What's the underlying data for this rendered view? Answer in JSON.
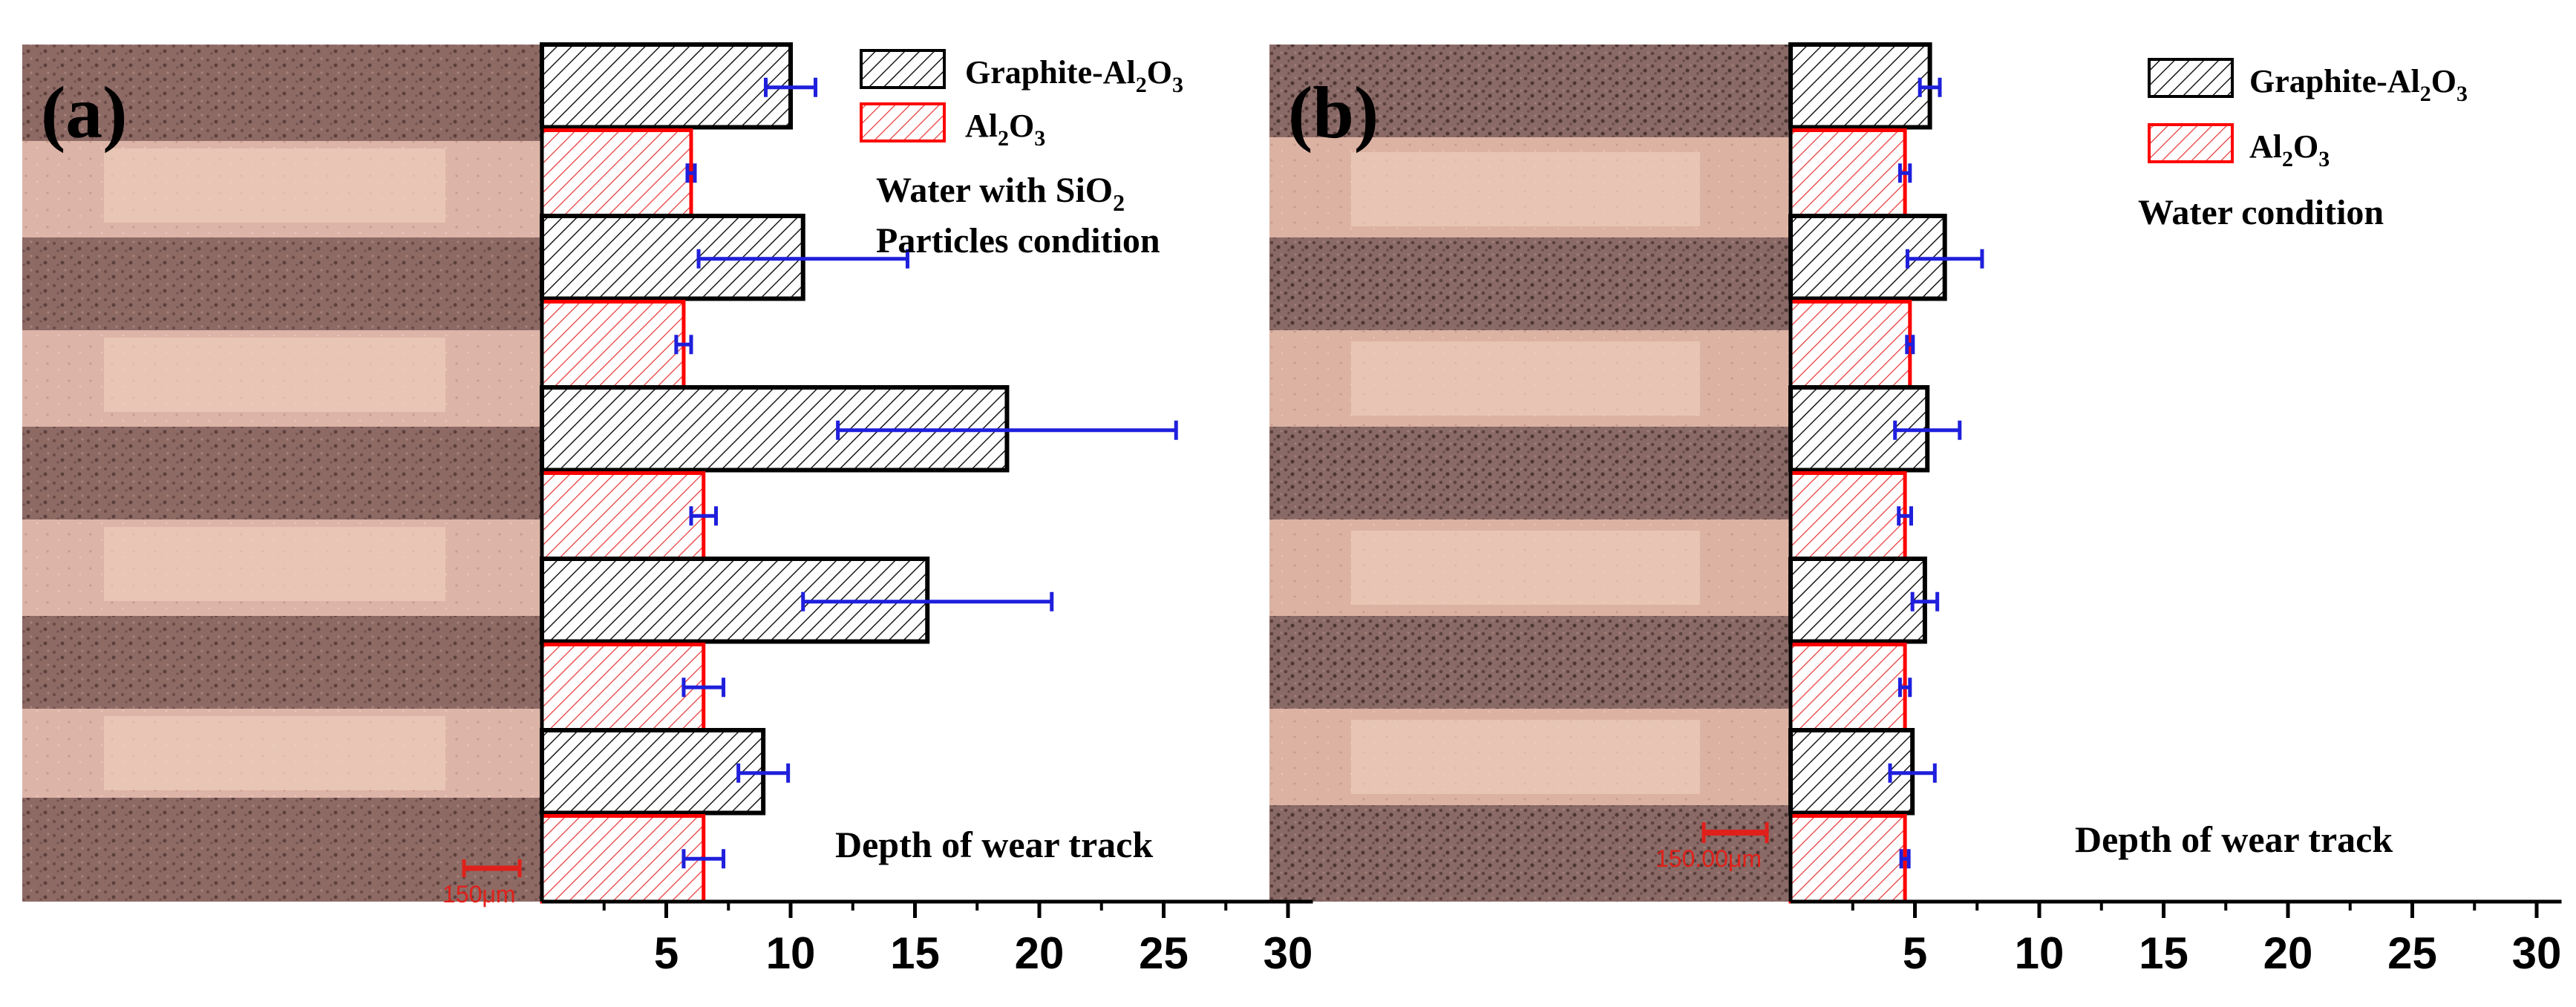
{
  "chart_data": [
    {
      "type": "bar",
      "orientation": "horizontal",
      "panel_label": "(a)",
      "condition_lines": [
        "Water with SiO2",
        "Particles condition"
      ],
      "axis_note": "Depth of wear track",
      "scale_bar": "150μm",
      "xlim": [
        0,
        31
      ],
      "xticks": [
        5,
        10,
        15,
        20,
        25,
        30
      ],
      "legend_position": "top-right",
      "series": [
        {
          "name": "Graphite-Al2O3",
          "values": [
            10.0,
            10.5,
            18.7,
            15.5,
            8.9
          ],
          "errors": [
            1.0,
            4.2,
            6.8,
            5.0,
            1.0
          ]
        },
        {
          "name": "Al2O3",
          "values": [
            6.0,
            5.7,
            6.5,
            6.5,
            6.5
          ],
          "errors": [
            0.15,
            0.3,
            0.5,
            0.8,
            0.8
          ]
        }
      ]
    },
    {
      "type": "bar",
      "orientation": "horizontal",
      "panel_label": "(b)",
      "condition_lines": [
        "Water condition"
      ],
      "axis_note": "Depth of wear track",
      "scale_bar": "150.00μm",
      "xlim": [
        0,
        31
      ],
      "xticks": [
        5,
        10,
        15,
        20,
        25,
        30
      ],
      "legend_position": "top-right",
      "series": [
        {
          "name": "Graphite-Al2O3",
          "values": [
            5.6,
            6.2,
            5.5,
            5.4,
            4.9
          ],
          "errors": [
            0.4,
            1.5,
            1.3,
            0.5,
            0.9
          ]
        },
        {
          "name": "Al2O3",
          "values": [
            4.6,
            4.8,
            4.6,
            4.6,
            4.6
          ],
          "errors": [
            0.2,
            0.12,
            0.25,
            0.2,
            0.15
          ]
        }
      ]
    }
  ],
  "colors": {
    "graphite_hatch": "#1a1a1a",
    "al2o3_hatch": "#e8393a",
    "al2o3_edge": "#ff0000",
    "error_bar": "#1f1fdc",
    "scale_bar": "#e0201a"
  }
}
